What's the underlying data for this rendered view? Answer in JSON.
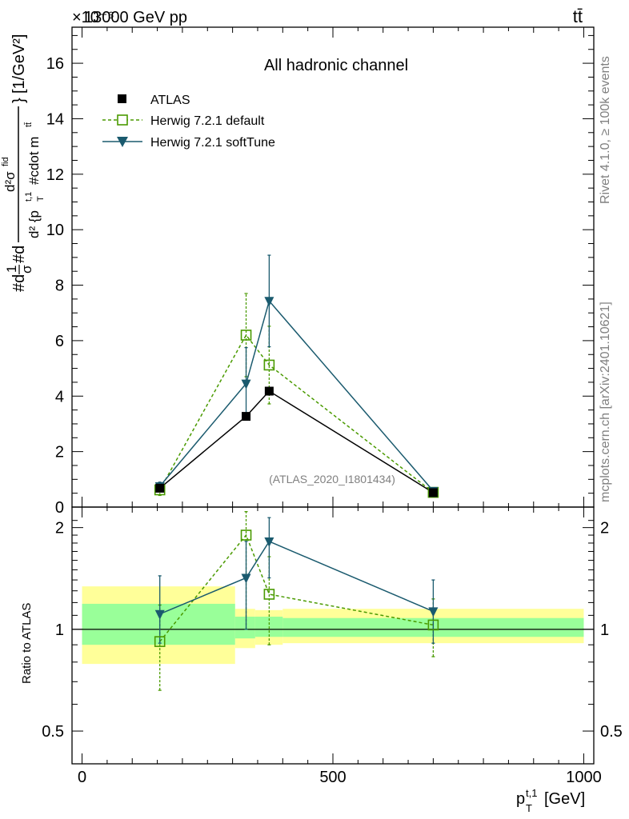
{
  "header": {
    "beam": "13000 GeV pp",
    "process": "tt̄",
    "exponent": "×10⁻⁶",
    "side_text_top": "Rivet 4.1.0, ≥ 100k events",
    "side_text_bottom": "mcplots.cern.ch [arXiv:2401.10621]"
  },
  "chart_data": [
    {
      "type": "scatter",
      "panel": "main",
      "title": "All hadronic channel",
      "analysis_label": "(ATLAS_2020_I1801434)",
      "xlabel": "p_T^{t,1} [GeV]",
      "ylabel": "#d1/σ#d d²σ^{fid} / d²{p_T^{t,1} #cdot m^{tt̄}} [1/GeV²]",
      "ylabel_parts": {
        "lead": "#d",
        "one": "1",
        "sigma": "σ",
        "d": "#d",
        "num": "d²σ",
        "num_sup": "fid",
        "den": "d² {p",
        "den_sub": "T",
        "den_sup": "t,1",
        "den_tail": "#cdot m",
        "den_tail_sup": "tt̄",
        "brace": "}",
        "units": "[1/GeV²]"
      },
      "scale": "1e-6",
      "xlim": [
        -20,
        1020
      ],
      "ylim": [
        0,
        17.3
      ],
      "yticks": [
        0,
        2,
        4,
        6,
        8,
        10,
        12,
        14,
        16
      ],
      "ytick_labels": [
        "0",
        "2",
        "4",
        "6",
        "8",
        "10",
        "12",
        "14",
        "16"
      ],
      "legend": [
        "ATLAS",
        "Herwig 7.2.1 default",
        "Herwig 7.2.1 softTune"
      ],
      "series": [
        {
          "name": "ATLAS",
          "color": "#000000",
          "marker": "square-filled",
          "x": [
            155,
            327,
            373,
            700
          ],
          "y": [
            0.68,
            3.27,
            4.18,
            0.52
          ]
        },
        {
          "name": "Herwig 7.2.1 default",
          "color": "#4a9a00",
          "marker": "square-open",
          "line": "dashed",
          "x": [
            155,
            327,
            373,
            700
          ],
          "y": [
            0.62,
            6.2,
            5.12,
            0.53
          ],
          "yerr_low": [
            0.2,
            1.5,
            1.4,
            0.1
          ],
          "yerr_high": [
            0.2,
            1.5,
            1.4,
            0.1
          ]
        },
        {
          "name": "Herwig 7.2.1 softTune",
          "color": "#1a5a6e",
          "marker": "triangle-down",
          "line": "solid",
          "x": [
            155,
            327,
            373,
            700
          ],
          "y": [
            0.75,
            4.45,
            7.43,
            0.58
          ],
          "yerr_low": [
            0.15,
            1.3,
            1.65,
            0.1
          ],
          "yerr_high": [
            0.15,
            1.3,
            1.65,
            0.1
          ]
        }
      ]
    },
    {
      "type": "scatter",
      "panel": "ratio",
      "ylabel": "Ratio to ATLAS",
      "xlim": [
        -20,
        1020
      ],
      "ylim": [
        0.4,
        2.3
      ],
      "xticks": [
        0,
        500,
        1000
      ],
      "xtick_labels": [
        "0",
        "500",
        "1000"
      ],
      "yticks": [
        0.5,
        1,
        2
      ],
      "ytick_labels": [
        "0.5",
        "1",
        "2"
      ],
      "bands": [
        {
          "x0": 0,
          "x1": 305,
          "yellow": [
            0.79,
            1.34
          ],
          "green": [
            0.9,
            1.19
          ]
        },
        {
          "x0": 305,
          "x1": 345,
          "yellow": [
            0.88,
            1.15
          ],
          "green": [
            0.94,
            1.09
          ]
        },
        {
          "x0": 345,
          "x1": 400,
          "yellow": [
            0.9,
            1.14
          ],
          "green": [
            0.95,
            1.09
          ]
        },
        {
          "x0": 400,
          "x1": 1000,
          "yellow": [
            0.91,
            1.15
          ],
          "green": [
            0.95,
            1.08
          ]
        }
      ],
      "series": [
        {
          "name": "Herwig 7.2.1 default",
          "color": "#4a9a00",
          "marker": "square-open",
          "line": "dashed",
          "x": [
            155,
            327,
            373,
            700
          ],
          "y": [
            0.92,
            1.9,
            1.27,
            1.03
          ],
          "yerr_low": [
            0.26,
            0.9,
            0.37,
            0.2
          ],
          "yerr_high": [
            0.26,
            0.33,
            0.37,
            0.2
          ]
        },
        {
          "name": "Herwig 7.2.1 softTune",
          "color": "#1a5a6e",
          "marker": "triangle-down",
          "line": "solid",
          "x": [
            155,
            327,
            373,
            700
          ],
          "y": [
            1.11,
            1.42,
            1.82,
            1.13
          ],
          "yerr_low": [
            0.2,
            0.42,
            0.4,
            0.22
          ],
          "yerr_high": [
            0.33,
            0.4,
            0.32,
            0.27
          ]
        }
      ]
    }
  ]
}
